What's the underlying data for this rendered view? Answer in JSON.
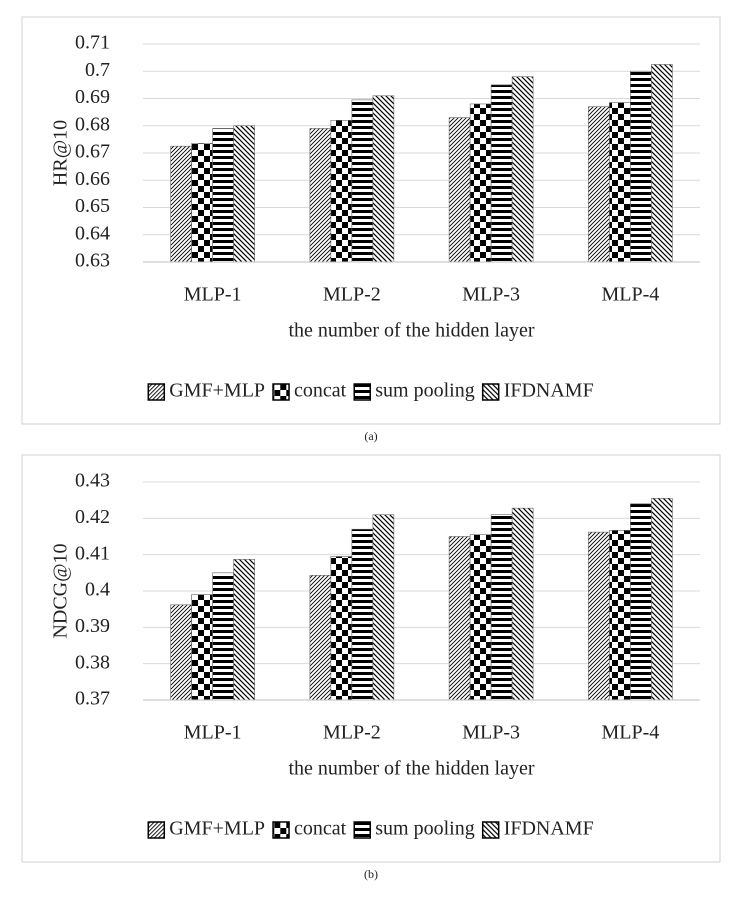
{
  "chart_data": [
    {
      "type": "bar",
      "caption": "(a)",
      "ylabel": "HR@10",
      "xlabel": "the number of the hidden layer",
      "categories": [
        "MLP-1",
        "MLP-2",
        "MLP-3",
        "MLP-4"
      ],
      "series": [
        {
          "name": "GMF+MLP",
          "color": "#000000",
          "pattern": "diagonal",
          "values": [
            0.6725,
            0.679,
            0.683,
            0.687
          ]
        },
        {
          "name": "concat",
          "color": "#000000",
          "pattern": "checker",
          "values": [
            0.6735,
            0.682,
            0.688,
            0.6885
          ]
        },
        {
          "name": "sum pooling",
          "color": "#000000",
          "pattern": "horizontal",
          "values": [
            0.679,
            0.6895,
            0.695,
            0.7
          ]
        },
        {
          "name": "IFDNAMF",
          "color": "#000000",
          "pattern": "back-diagonal",
          "values": [
            0.68,
            0.691,
            0.698,
            0.7025
          ]
        }
      ],
      "ylim": [
        0.63,
        0.71
      ],
      "yticks": [
        0.63,
        0.64,
        0.65,
        0.66,
        0.67,
        0.68,
        0.69,
        0.7,
        0.71
      ],
      "grid": true,
      "legend": "bottom"
    },
    {
      "type": "bar",
      "caption": "(b)",
      "ylabel": "NDCG@10",
      "xlabel": "the number of the hidden layer",
      "categories": [
        "MLP-1",
        "MLP-2",
        "MLP-3",
        "MLP-4"
      ],
      "series": [
        {
          "name": "GMF+MLP",
          "color": "#000000",
          "pattern": "diagonal",
          "values": [
            0.3962,
            0.4043,
            0.415,
            0.4162
          ]
        },
        {
          "name": "concat",
          "color": "#000000",
          "pattern": "checker",
          "values": [
            0.399,
            0.4095,
            0.4155,
            0.4167
          ]
        },
        {
          "name": "sum pooling",
          "color": "#000000",
          "pattern": "horizontal",
          "values": [
            0.405,
            0.417,
            0.421,
            0.424
          ]
        },
        {
          "name": "IFDNAMF",
          "color": "#000000",
          "pattern": "back-diagonal",
          "values": [
            0.4087,
            0.421,
            0.4228,
            0.4255
          ]
        }
      ],
      "ylim": [
        0.37,
        0.43
      ],
      "yticks": [
        0.37,
        0.38,
        0.39,
        0.4,
        0.41,
        0.42,
        0.43
      ],
      "grid": true,
      "legend": "bottom"
    }
  ]
}
